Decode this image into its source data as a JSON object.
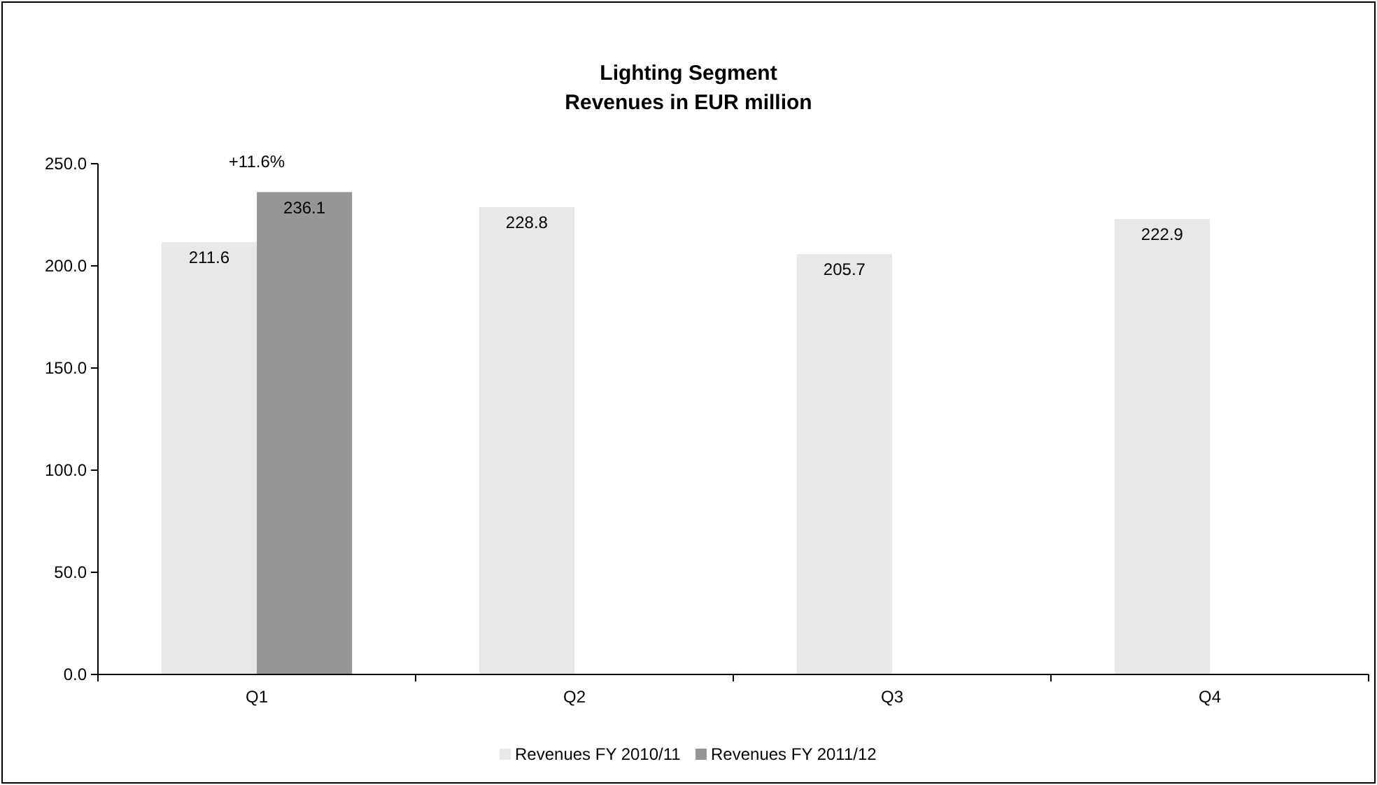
{
  "chart_data": {
    "type": "bar",
    "title": "Lighting Segment",
    "subtitle": "Revenues in EUR million",
    "categories": [
      "Q1",
      "Q2",
      "Q3",
      "Q4"
    ],
    "series": [
      {
        "name": "Revenues FY 2010/11",
        "color": "#e8e8e8",
        "values": [
          211.6,
          228.8,
          205.7,
          222.9
        ]
      },
      {
        "name": "Revenues FY 2011/12",
        "color": "#969696",
        "values": [
          236.1,
          null,
          null,
          null
        ]
      }
    ],
    "ylim": [
      0,
      250
    ],
    "yticks": [
      {
        "value": 0,
        "label": "0.0"
      },
      {
        "value": 50,
        "label": "50.0"
      },
      {
        "value": 100,
        "label": "100.0"
      },
      {
        "value": 150,
        "label": "150.0"
      },
      {
        "value": 200,
        "label": "200.0"
      },
      {
        "value": 250,
        "label": "250.0"
      }
    ],
    "data_labels": true,
    "legend": "bottom",
    "annotations": [
      {
        "text": "+11.6%",
        "x": "Q1",
        "y": 236.1
      }
    ]
  }
}
